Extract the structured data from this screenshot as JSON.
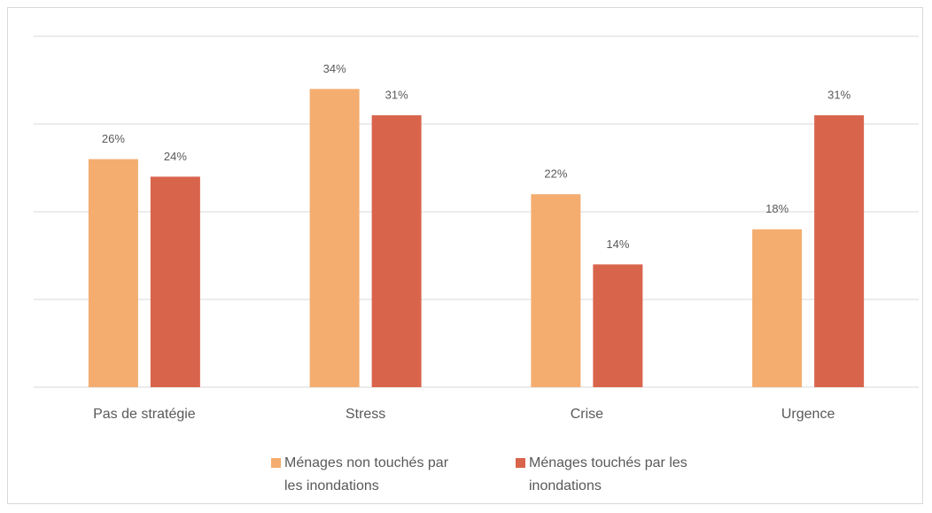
{
  "chart_data": {
    "type": "bar",
    "categories": [
      "Pas de stratégie",
      "Stress",
      "Crise",
      "Urgence"
    ],
    "series": [
      {
        "name": "Ménages non touchés par les inondations",
        "color": "#f4ad6f",
        "values": [
          26,
          34,
          22,
          18
        ],
        "value_labels": [
          "26%",
          "34%",
          "22%",
          "18%"
        ]
      },
      {
        "name": "Ménages touchés par les inondations",
        "color": "#d9644c",
        "values": [
          24,
          31,
          14,
          31
        ],
        "value_labels": [
          "24%",
          "31%",
          "14%",
          "31%"
        ]
      }
    ],
    "ylim": [
      0,
      40
    ],
    "yticks": [
      0,
      10,
      20,
      30,
      40
    ],
    "grid": true
  }
}
